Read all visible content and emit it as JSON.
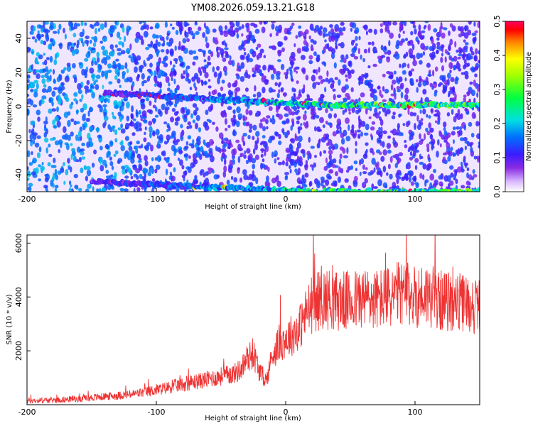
{
  "chart_data": [
    {
      "type": "heatmap",
      "title": "YM08.2026.059.13.21.G18",
      "xlabel": "Height of straight line (km)",
      "ylabel": "Frequency (Hz)",
      "xlim": [
        -200,
        150
      ],
      "ylim": [
        -50,
        50
      ],
      "x_ticks": [
        "-200",
        "-100",
        "0",
        "100"
      ],
      "y_ticks": [
        "40",
        "20",
        "0",
        "-20",
        "-40"
      ],
      "colorbar": {
        "label": "Normalized spectral amplitude",
        "range": [
          0,
          0.5
        ],
        "ticks": [
          "0.0",
          "0.1",
          "0.2",
          "0.3",
          "0.4",
          "0.5"
        ]
      },
      "features": [
        {
          "name_hidden": true,
          "kind": "ridge",
          "x_range": [
            -140,
            150
          ],
          "freq_hz": [
            8,
            1
          ],
          "peak_amplitude": 0.45
        },
        {
          "name_hidden": true,
          "kind": "ridge",
          "x_range": [
            -150,
            150
          ],
          "freq_hz": [
            -44,
            -50
          ],
          "peak_amplitude": 0.25
        }
      ]
    },
    {
      "type": "line",
      "xlabel": "Height of straight line (km)",
      "ylabel": "SNR (10 * v/v)",
      "xlim": [
        -200,
        150
      ],
      "ylim": [
        0,
        6300
      ],
      "x_ticks": [
        "-200",
        "-100",
        "0",
        "100"
      ],
      "y_ticks": [
        "6000",
        "4000",
        "2000"
      ],
      "series": [
        {
          "color": "#ee3333",
          "x": [
            -200,
            -180,
            -160,
            -140,
            -120,
            -110,
            -100,
            -90,
            -80,
            -70,
            -60,
            -50,
            -40,
            -35,
            -30,
            -25,
            -20,
            -15,
            -10,
            -5,
            0,
            5,
            10,
            15,
            20,
            25,
            30,
            40,
            50,
            60,
            70,
            80,
            90,
            100,
            110,
            120,
            130,
            140,
            150
          ],
          "values": [
            150,
            170,
            220,
            300,
            380,
            450,
            550,
            650,
            750,
            850,
            950,
            1050,
            1150,
            1300,
            1700,
            1900,
            1200,
            900,
            1900,
            2300,
            2450,
            2600,
            2800,
            3300,
            3700,
            3850,
            3950,
            3850,
            3850,
            3950,
            3900,
            4000,
            4150,
            4000,
            4100,
            3850,
            3800,
            3750,
            3650
          ]
        }
      ]
    }
  ]
}
